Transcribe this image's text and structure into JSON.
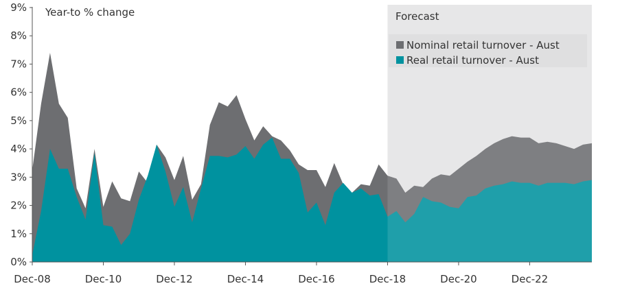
{
  "chart_data": {
    "type": "area",
    "y_axis_title": "Year-to % change",
    "forecast_label": "Forecast",
    "forecast_start": "Dec-18",
    "ylim": [
      0,
      9
    ],
    "y_ticks": [
      "0%",
      "1%",
      "2%",
      "3%",
      "4%",
      "5%",
      "6%",
      "7%",
      "8%",
      "9%"
    ],
    "x_ticks": [
      "Dec-08",
      "Dec-10",
      "Dec-12",
      "Dec-14",
      "Dec-16",
      "Dec-18",
      "Dec-20",
      "Dec-22"
    ],
    "grid": false,
    "legend_position": "top-right",
    "colors": {
      "nominal": "#6d6e71",
      "real": "#00929f",
      "forecast_shade": "#e4e4e5"
    },
    "series": [
      {
        "name": "Nominal retail turnover - Aust",
        "points": [
          [
            "Dec-08",
            3.25
          ],
          [
            "Mar-09",
            5.6
          ],
          [
            "Jun-09",
            7.4
          ],
          [
            "Sep-09",
            5.6
          ],
          [
            "Dec-09",
            5.1
          ],
          [
            "Mar-10",
            2.6
          ],
          [
            "Jun-10",
            1.9
          ],
          [
            "Sep-10",
            4.0
          ],
          [
            "Dec-10",
            1.95
          ],
          [
            "Mar-11",
            2.85
          ],
          [
            "Jun-11",
            2.25
          ],
          [
            "Sep-11",
            2.15
          ],
          [
            "Dec-11",
            3.2
          ],
          [
            "Mar-12",
            2.8
          ],
          [
            "Jun-12",
            4.15
          ],
          [
            "Sep-12",
            3.7
          ],
          [
            "Dec-12",
            2.9
          ],
          [
            "Mar-13",
            3.75
          ],
          [
            "Jun-13",
            2.2
          ],
          [
            "Sep-13",
            2.75
          ],
          [
            "Dec-13",
            4.85
          ],
          [
            "Mar-14",
            5.65
          ],
          [
            "Jun-14",
            5.5
          ],
          [
            "Sep-14",
            5.9
          ],
          [
            "Dec-14",
            5.05
          ],
          [
            "Mar-15",
            4.3
          ],
          [
            "Jun-15",
            4.8
          ],
          [
            "Sep-15",
            4.45
          ],
          [
            "Dec-15",
            4.3
          ],
          [
            "Mar-16",
            3.95
          ],
          [
            "Jun-16",
            3.45
          ],
          [
            "Sep-16",
            3.25
          ],
          [
            "Dec-16",
            3.25
          ],
          [
            "Mar-17",
            2.65
          ],
          [
            "Jun-17",
            3.5
          ],
          [
            "Sep-17",
            2.75
          ],
          [
            "Dec-17",
            2.45
          ],
          [
            "Mar-18",
            2.75
          ],
          [
            "Jun-18",
            2.7
          ],
          [
            "Sep-18",
            3.45
          ],
          [
            "Dec-18",
            3.05
          ],
          [
            "Mar-19",
            2.95
          ],
          [
            "Jun-19",
            2.45
          ],
          [
            "Sep-19",
            2.7
          ],
          [
            "Dec-19",
            2.65
          ],
          [
            "Mar-20",
            2.95
          ],
          [
            "Jun-20",
            3.1
          ],
          [
            "Sep-20",
            3.05
          ],
          [
            "Dec-20",
            3.3
          ],
          [
            "Mar-21",
            3.55
          ],
          [
            "Jun-21",
            3.75
          ],
          [
            "Sep-21",
            4.0
          ],
          [
            "Dec-21",
            4.2
          ],
          [
            "Mar-22",
            4.35
          ],
          [
            "Jun-22",
            4.45
          ],
          [
            "Sep-22",
            4.4
          ],
          [
            "Dec-22",
            4.4
          ],
          [
            "Mar-23",
            4.2
          ],
          [
            "Jun-23",
            4.25
          ],
          [
            "Sep-23",
            4.2
          ],
          [
            "Dec-23",
            4.1
          ],
          [
            "Mar-24",
            4.0
          ],
          [
            "Jun-24",
            4.15
          ],
          [
            "Sep-24",
            4.2
          ]
        ]
      },
      {
        "name": "Real retail turnover - Aust",
        "points": [
          [
            "Dec-08",
            0.25
          ],
          [
            "Mar-09",
            1.8
          ],
          [
            "Jun-09",
            4.0
          ],
          [
            "Sep-09",
            3.3
          ],
          [
            "Dec-09",
            3.3
          ],
          [
            "Mar-10",
            2.3
          ],
          [
            "Jun-10",
            1.5
          ],
          [
            "Sep-10",
            3.85
          ],
          [
            "Dec-10",
            1.3
          ],
          [
            "Mar-11",
            1.25
          ],
          [
            "Jun-11",
            0.6
          ],
          [
            "Sep-11",
            1.0
          ],
          [
            "Dec-11",
            2.2
          ],
          [
            "Mar-12",
            3.05
          ],
          [
            "Jun-12",
            4.15
          ],
          [
            "Sep-12",
            3.2
          ],
          [
            "Dec-12",
            1.95
          ],
          [
            "Mar-13",
            2.65
          ],
          [
            "Jun-13",
            1.4
          ],
          [
            "Sep-13",
            2.6
          ],
          [
            "Dec-13",
            3.75
          ],
          [
            "Mar-14",
            3.75
          ],
          [
            "Jun-14",
            3.7
          ],
          [
            "Sep-14",
            3.8
          ],
          [
            "Dec-14",
            4.1
          ],
          [
            "Mar-15",
            3.65
          ],
          [
            "Jun-15",
            4.15
          ],
          [
            "Sep-15",
            4.4
          ],
          [
            "Dec-15",
            3.65
          ],
          [
            "Mar-16",
            3.65
          ],
          [
            "Jun-16",
            3.15
          ],
          [
            "Sep-16",
            1.75
          ],
          [
            "Dec-16",
            2.1
          ],
          [
            "Mar-17",
            1.3
          ],
          [
            "Jun-17",
            2.45
          ],
          [
            "Sep-17",
            2.8
          ],
          [
            "Dec-17",
            2.45
          ],
          [
            "Mar-18",
            2.6
          ],
          [
            "Jun-18",
            2.35
          ],
          [
            "Sep-18",
            2.4
          ],
          [
            "Dec-18",
            1.6
          ],
          [
            "Mar-19",
            1.8
          ],
          [
            "Jun-19",
            1.4
          ],
          [
            "Sep-19",
            1.7
          ],
          [
            "Dec-19",
            2.3
          ],
          [
            "Mar-20",
            2.15
          ],
          [
            "Jun-20",
            2.1
          ],
          [
            "Sep-20",
            1.95
          ],
          [
            "Dec-20",
            1.9
          ],
          [
            "Mar-21",
            2.3
          ],
          [
            "Jun-21",
            2.35
          ],
          [
            "Sep-21",
            2.6
          ],
          [
            "Dec-21",
            2.7
          ],
          [
            "Mar-22",
            2.75
          ],
          [
            "Jun-22",
            2.85
          ],
          [
            "Sep-22",
            2.8
          ],
          [
            "Dec-22",
            2.8
          ],
          [
            "Mar-23",
            2.7
          ],
          [
            "Jun-23",
            2.8
          ],
          [
            "Sep-23",
            2.8
          ],
          [
            "Dec-23",
            2.8
          ],
          [
            "Mar-24",
            2.75
          ],
          [
            "Jun-24",
            2.85
          ],
          [
            "Sep-24",
            2.9
          ]
        ]
      }
    ]
  }
}
